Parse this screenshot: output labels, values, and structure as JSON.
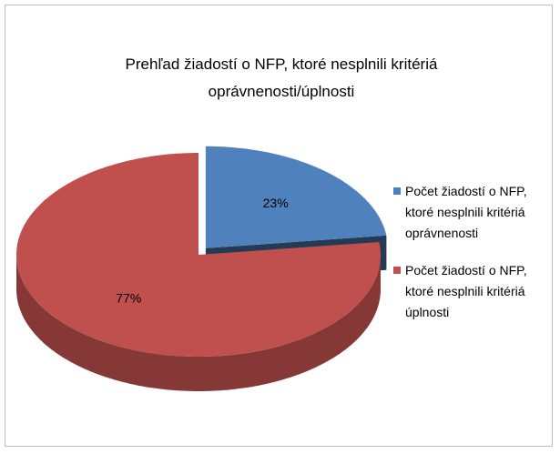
{
  "chart_data": {
    "type": "pie",
    "title": "Prehľad žiadostí o NFP, ktoré nesplnili kritériá oprávnenosti/úplnosti",
    "categories": [
      "Počet žiadostí o NFP, ktoré nesplnili kritériá oprávnenosti",
      "Počet žiadostí o NFP, ktoré nesplnili kritériá úplnosti"
    ],
    "values": [
      23,
      77
    ],
    "value_labels": [
      "23%",
      "77%"
    ],
    "colors": [
      "#4f81bd",
      "#c0504d"
    ],
    "legend": "right"
  }
}
